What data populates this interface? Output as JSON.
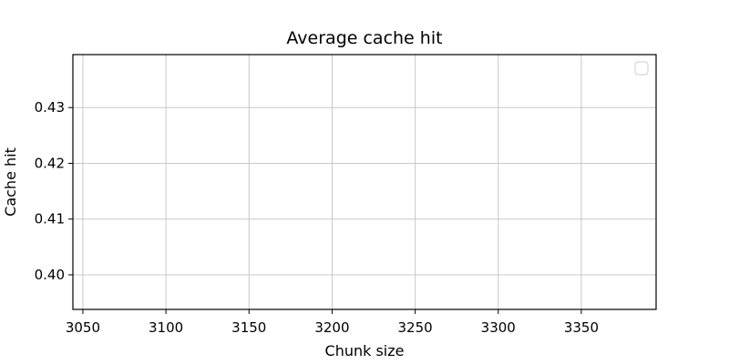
{
  "chart_data": {
    "type": "line",
    "title": "Average cache hit",
    "xlabel": "Chunk size",
    "ylabel": "Cache hit",
    "xlim": [
      3044,
      3395
    ],
    "ylim": [
      0.3938,
      0.4395
    ],
    "xticks": [
      3050,
      3100,
      3150,
      3200,
      3250,
      3300,
      3350
    ],
    "yticks": [
      0.4,
      0.41,
      0.42,
      0.43
    ],
    "xtick_labels": [
      "3050",
      "3100",
      "3150",
      "3200",
      "3250",
      "3300",
      "3350"
    ],
    "ytick_labels": [
      "0.40",
      "0.41",
      "0.42",
      "0.43"
    ],
    "series": [],
    "grid": true,
    "legend": {
      "placement": "top-right",
      "entries": []
    },
    "colors": {
      "grid": "#c8c8c8",
      "axis": "#000000",
      "background": "#ffffff"
    }
  }
}
